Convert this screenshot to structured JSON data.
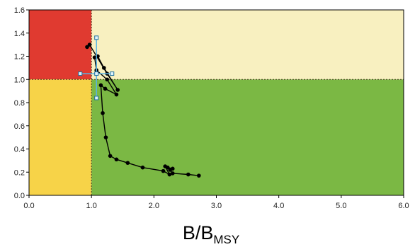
{
  "chart_data": {
    "type": "scatter",
    "title": "",
    "xlabel": "B/B",
    "xlabel_subscript": "MSY",
    "ylabel": "",
    "xlim": [
      0,
      6
    ],
    "ylim": [
      0,
      1.6
    ],
    "x_ticks": [
      "0.0",
      "1.0",
      "2.0",
      "3.0",
      "4.0",
      "5.0",
      "6.0"
    ],
    "y_ticks": [
      "0.0",
      "0.2",
      "0.4",
      "0.6",
      "0.8",
      "1.0",
      "1.2",
      "1.4",
      "1.6"
    ],
    "grid": false,
    "legend": "none",
    "reference_lines": {
      "x": 1.0,
      "y": 1.0
    },
    "zones": [
      {
        "name": "overfished-overfishing",
        "x": [
          0,
          1
        ],
        "y": [
          1,
          1.6
        ],
        "color": "#e03a30"
      },
      {
        "name": "overfishing-only",
        "x": [
          1,
          6
        ],
        "y": [
          1,
          1.6
        ],
        "color": "#f8f0c0"
      },
      {
        "name": "overfished-only",
        "x": [
          0,
          1
        ],
        "y": [
          0,
          1
        ],
        "color": "#f7d348"
      },
      {
        "name": "healthy",
        "x": [
          1,
          6
        ],
        "y": [
          0,
          1
        ],
        "color": "#7bb844"
      }
    ],
    "series": [
      {
        "color": "#000000",
        "points": [
          {
            "x": 2.72,
            "y": 0.17
          },
          {
            "x": 2.55,
            "y": 0.18
          },
          {
            "x": 2.3,
            "y": 0.19
          },
          {
            "x": 2.26,
            "y": 0.22
          },
          {
            "x": 2.3,
            "y": 0.23
          },
          {
            "x": 2.22,
            "y": 0.24
          },
          {
            "x": 2.18,
            "y": 0.25
          },
          {
            "x": 2.25,
            "y": 0.18
          },
          {
            "x": 2.15,
            "y": 0.21
          },
          {
            "x": 1.82,
            "y": 0.24
          },
          {
            "x": 1.58,
            "y": 0.28
          },
          {
            "x": 1.4,
            "y": 0.31
          },
          {
            "x": 1.3,
            "y": 0.34
          },
          {
            "x": 1.23,
            "y": 0.5
          },
          {
            "x": 1.18,
            "y": 0.71
          },
          {
            "x": 1.15,
            "y": 0.95
          },
          {
            "x": 1.22,
            "y": 0.92
          },
          {
            "x": 1.4,
            "y": 0.87
          },
          {
            "x": 1.25,
            "y": 1.0
          },
          {
            "x": 1.08,
            "y": 1.08
          },
          {
            "x": 1.05,
            "y": 1.19
          },
          {
            "x": 1.1,
            "y": 1.2
          },
          {
            "x": 1.2,
            "y": 1.1
          },
          {
            "x": 1.42,
            "y": 0.91
          },
          {
            "x": 1.25,
            "y": 1.05
          },
          {
            "x": 0.97,
            "y": 1.3
          },
          {
            "x": 0.93,
            "y": 1.28
          }
        ]
      }
    ],
    "highlight_point": {
      "x": 1.08,
      "y": 1.05,
      "x_range": [
        0.82,
        1.33
      ],
      "y_range": [
        0.84,
        1.36
      ],
      "color": "#5ab4e5"
    }
  }
}
